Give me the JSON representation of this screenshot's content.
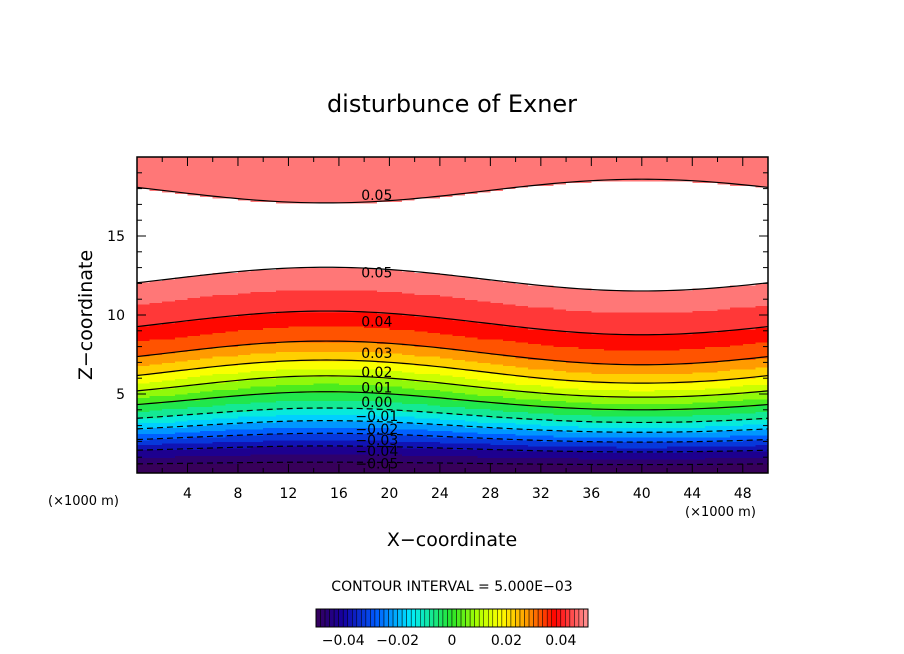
{
  "chart_data": {
    "type": "contour",
    "title": "disturbunce of Exner",
    "xlabel": "X−coordinate",
    "ylabel": "Z−coordinate",
    "x_unit": "(×1000 m)",
    "z_unit": "(×1000 m)",
    "xlim": [
      0,
      50
    ],
    "ylim": [
      0,
      20
    ],
    "x_ticks": [
      4,
      8,
      12,
      16,
      20,
      24,
      28,
      32,
      36,
      40,
      44,
      48
    ],
    "x_tick_labels": [
      "4",
      "8",
      "12",
      "16",
      "20",
      "24",
      "28",
      "32",
      "36",
      "40",
      "44",
      "48"
    ],
    "y_ticks": [
      5,
      10,
      15
    ],
    "y_tick_labels": [
      "5",
      "10",
      "15"
    ],
    "contour_interval_text": "CONTOUR INTERVAL = 5.000E−03",
    "contour_interval": 0.005,
    "colorbar": {
      "min": -0.05,
      "max": 0.05,
      "tick_values": [
        -0.04,
        -0.02,
        0,
        0.02,
        0.04
      ],
      "tick_labels": [
        "−0.04",
        "−0.02",
        "0",
        "0.02",
        "0.04"
      ]
    },
    "contour_labels": [
      {
        "text": "0.05",
        "x": 19,
        "z": 17.6
      },
      {
        "text": "0.05",
        "x": 19,
        "z": 12.7
      },
      {
        "text": "0.04",
        "x": 19,
        "z": 9.6
      },
      {
        "text": "0.03",
        "x": 19,
        "z": 7.6
      },
      {
        "text": "0.02",
        "x": 19,
        "z": 6.4
      },
      {
        "text": "0.01",
        "x": 19,
        "z": 5.4
      },
      {
        "text": "0.00",
        "x": 19,
        "z": 4.5
      },
      {
        "text": "−0.01",
        "x": 19,
        "z": 3.6
      },
      {
        "text": "−0.02",
        "x": 19,
        "z": 2.8
      },
      {
        "text": "−0.03",
        "x": 19,
        "z": 2.1
      },
      {
        "text": "−0.04",
        "x": 19,
        "z": 1.4
      },
      {
        "text": "−0.05",
        "x": 19,
        "z": 0.6
      }
    ]
  }
}
